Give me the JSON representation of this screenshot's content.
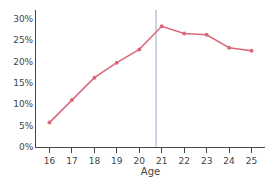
{
  "chart_data": {
    "type": "line",
    "x_label": "Age",
    "x": [
      16,
      17,
      18,
      19,
      20,
      21,
      22,
      23,
      24,
      25
    ],
    "values": [
      0.057,
      0.11,
      0.162,
      0.197,
      0.228,
      0.282,
      0.265,
      0.262,
      0.232,
      0.225
    ],
    "color": "#d9697a",
    "marker": "circle",
    "line_style": "solid",
    "reference_lines": [
      {
        "x": 20.75,
        "color": "#8899bb"
      }
    ],
    "xlim": [
      15.4,
      25.6
    ],
    "xticks": [
      16,
      17,
      18,
      19,
      20,
      21,
      22,
      23,
      24,
      25
    ],
    "ylim": [
      0,
      0.32
    ],
    "yticks": [
      {
        "value": 0.0,
        "label": "0%"
      },
      {
        "value": 0.05,
        "label": "5%"
      },
      {
        "value": 0.1,
        "label": "10%"
      },
      {
        "value": 0.15,
        "label": "15%"
      },
      {
        "value": 0.2,
        "label": "20%"
      },
      {
        "value": 0.25,
        "label": "25%"
      },
      {
        "value": 0.3,
        "label": "30%"
      }
    ],
    "grid": false
  }
}
